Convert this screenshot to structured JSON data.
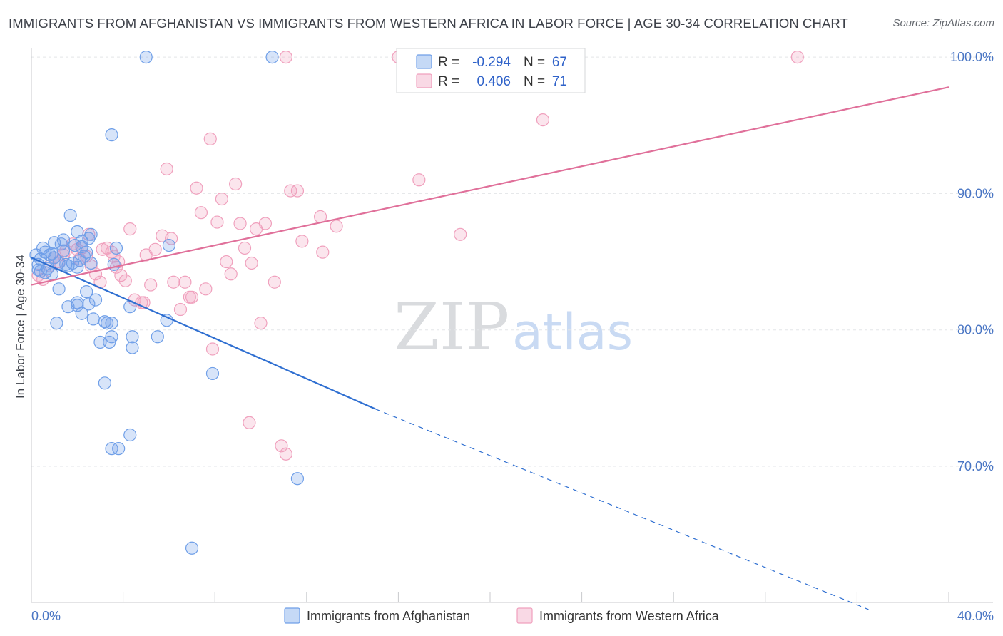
{
  "header": {
    "title": "IMMIGRANTS FROM AFGHANISTAN VS IMMIGRANTS FROM WESTERN AFRICA IN LABOR FORCE | AGE 30-34 CORRELATION CHART",
    "source": "Source: ZipAtlas.com"
  },
  "watermark": {
    "zip": "ZIP",
    "atlas": "atlas"
  },
  "legend_top": {
    "rows": [
      {
        "r_label": "R =",
        "r_value": "-0.294",
        "n_label": "N =",
        "n_value": "67"
      },
      {
        "r_label": "R =",
        "r_value": "0.406",
        "n_label": "N =",
        "n_value": "71"
      }
    ]
  },
  "chart_data": {
    "type": "scatter",
    "title": "IMMIGRANTS FROM AFGHANISTAN VS IMMIGRANTS FROM WESTERN AFRICA IN LABOR FORCE | AGE 30-34 CORRELATION CHART",
    "xlabel": "",
    "ylabel": "In Labor Force | Age 30-34",
    "xlim": [
      0,
      40
    ],
    "ylim": [
      59.5,
      101.5
    ],
    "x_tick_labels": [
      {
        "value": 0,
        "label": "0.0%"
      },
      {
        "value": 40,
        "label": "40.0%"
      }
    ],
    "x_minor_ticks": [
      4,
      8,
      12,
      16,
      20,
      24,
      28,
      32,
      36,
      40
    ],
    "y_ticks": [
      {
        "value": 70,
        "label": "70.0%"
      },
      {
        "value": 80,
        "label": "80.0%"
      },
      {
        "value": 90,
        "label": "90.0%"
      },
      {
        "value": 100,
        "label": "100.0%"
      }
    ],
    "grid": true,
    "legend_position": "top-center",
    "colors": {
      "afghanistan": "#6f9fe8",
      "afghanistan_line": "#2f6fd1",
      "western_africa": "#f0a0bd",
      "western_africa_line": "#e0709a"
    },
    "series": [
      {
        "name": "Immigrants from Afghanistan",
        "r": -0.294,
        "n": 67,
        "trend": {
          "x0": 0,
          "y0": 85.3,
          "x1": 15.0,
          "y1": 74.2,
          "dash_to_x": 36.5,
          "dash_to_y": 59.5
        },
        "points": [
          [
            0.2,
            85.5
          ],
          [
            0.3,
            84.8
          ],
          [
            0.4,
            85.2
          ],
          [
            0.4,
            84.3
          ],
          [
            0.5,
            86.0
          ],
          [
            0.6,
            85.7
          ],
          [
            0.7,
            84.5
          ],
          [
            0.8,
            85.5
          ],
          [
            0.9,
            84.1
          ],
          [
            1.0,
            85.3
          ],
          [
            1.0,
            86.4
          ],
          [
            1.1,
            80.5
          ],
          [
            1.2,
            83.0
          ],
          [
            1.3,
            86.3
          ],
          [
            1.4,
            85.8
          ],
          [
            1.5,
            84.8
          ],
          [
            1.6,
            81.7
          ],
          [
            1.7,
            88.4
          ],
          [
            1.8,
            84.9
          ],
          [
            1.9,
            86.2
          ],
          [
            2.0,
            87.2
          ],
          [
            2.1,
            85.1
          ],
          [
            2.2,
            86.1
          ],
          [
            2.3,
            85.4
          ],
          [
            2.4,
            82.8
          ],
          [
            2.5,
            86.7
          ],
          [
            2.2,
            86.5
          ],
          [
            2.0,
            84.6
          ],
          [
            1.4,
            86.6
          ],
          [
            0.9,
            85.6
          ],
          [
            0.6,
            84.2
          ],
          [
            2.6,
            84.9
          ],
          [
            2.2,
            81.2
          ],
          [
            2.0,
            82.0
          ],
          [
            2.7,
            80.8
          ],
          [
            3.0,
            79.1
          ],
          [
            3.3,
            80.5
          ],
          [
            3.5,
            79.5
          ],
          [
            3.7,
            86.0
          ],
          [
            3.6,
            84.8
          ],
          [
            3.5,
            80.5
          ],
          [
            3.4,
            79.1
          ],
          [
            4.4,
            79.5
          ],
          [
            4.4,
            78.7
          ],
          [
            5.5,
            79.5
          ],
          [
            5.9,
            80.7
          ],
          [
            6.0,
            86.2
          ],
          [
            3.2,
            76.1
          ],
          [
            4.3,
            81.7
          ],
          [
            4.3,
            72.3
          ],
          [
            3.8,
            71.3
          ],
          [
            3.5,
            71.3
          ],
          [
            7.9,
            76.8
          ],
          [
            11.6,
            69.1
          ],
          [
            7.0,
            64.0
          ],
          [
            3.5,
            94.3
          ],
          [
            5.0,
            100.0
          ],
          [
            10.5,
            100.0
          ],
          [
            2.8,
            82.2
          ],
          [
            2.0,
            81.8
          ],
          [
            2.5,
            81.9
          ],
          [
            3.2,
            80.6
          ],
          [
            2.6,
            87.0
          ],
          [
            1.6,
            84.7
          ],
          [
            0.3,
            84.4
          ],
          [
            1.2,
            84.9
          ],
          [
            2.4,
            85.7
          ]
        ]
      },
      {
        "name": "Immigrants from Western Africa",
        "r": 0.406,
        "n": 71,
        "trend": {
          "x0": 0,
          "y0": 83.3,
          "x1": 40,
          "y1": 97.8
        },
        "points": [
          [
            0.3,
            84.0
          ],
          [
            0.5,
            83.7
          ],
          [
            0.8,
            84.7
          ],
          [
            1.0,
            85.3
          ],
          [
            1.2,
            85.0
          ],
          [
            1.5,
            85.8
          ],
          [
            1.8,
            86.3
          ],
          [
            2.0,
            85.9
          ],
          [
            2.2,
            86.0
          ],
          [
            2.4,
            85.4
          ],
          [
            2.5,
            87.0
          ],
          [
            2.6,
            84.7
          ],
          [
            2.8,
            84.1
          ],
          [
            3.0,
            83.5
          ],
          [
            3.3,
            86.0
          ],
          [
            3.5,
            85.7
          ],
          [
            3.7,
            84.6
          ],
          [
            3.8,
            85.0
          ],
          [
            3.9,
            84.0
          ],
          [
            4.1,
            83.6
          ],
          [
            4.3,
            87.4
          ],
          [
            4.5,
            82.2
          ],
          [
            4.8,
            82.0
          ],
          [
            5.0,
            85.5
          ],
          [
            5.2,
            83.3
          ],
          [
            5.4,
            85.9
          ],
          [
            5.7,
            86.9
          ],
          [
            5.9,
            91.8
          ],
          [
            6.1,
            86.7
          ],
          [
            6.2,
            83.5
          ],
          [
            6.5,
            81.5
          ],
          [
            6.7,
            83.5
          ],
          [
            6.9,
            82.4
          ],
          [
            7.0,
            82.4
          ],
          [
            7.2,
            90.4
          ],
          [
            7.4,
            88.6
          ],
          [
            7.6,
            83.0
          ],
          [
            7.8,
            94.0
          ],
          [
            7.9,
            78.6
          ],
          [
            8.1,
            87.9
          ],
          [
            8.3,
            89.6
          ],
          [
            8.5,
            85.0
          ],
          [
            8.7,
            84.1
          ],
          [
            8.9,
            90.7
          ],
          [
            9.1,
            87.8
          ],
          [
            9.3,
            86.0
          ],
          [
            9.5,
            73.2
          ],
          [
            9.6,
            84.9
          ],
          [
            9.8,
            87.4
          ],
          [
            10.0,
            80.5
          ],
          [
            10.2,
            87.8
          ],
          [
            10.6,
            83.5
          ],
          [
            10.9,
            71.5
          ],
          [
            11.1,
            70.9
          ],
          [
            11.3,
            90.2
          ],
          [
            11.6,
            90.2
          ],
          [
            11.8,
            86.5
          ],
          [
            12.6,
            88.3
          ],
          [
            12.7,
            85.7
          ],
          [
            13.3,
            87.6
          ],
          [
            16.0,
            100.0
          ],
          [
            16.9,
            91.0
          ],
          [
            18.7,
            87.0
          ],
          [
            22.3,
            95.4
          ],
          [
            33.4,
            100.0
          ],
          [
            11.1,
            100.0
          ],
          [
            2.1,
            85.2
          ],
          [
            1.4,
            85.5
          ],
          [
            3.6,
            85.4
          ],
          [
            4.9,
            82.0
          ],
          [
            3.1,
            85.9
          ]
        ]
      }
    ]
  },
  "legend_bottom": {
    "items": [
      {
        "label": "Immigrants from Afghanistan"
      },
      {
        "label": "Immigrants from Western Africa"
      }
    ]
  }
}
